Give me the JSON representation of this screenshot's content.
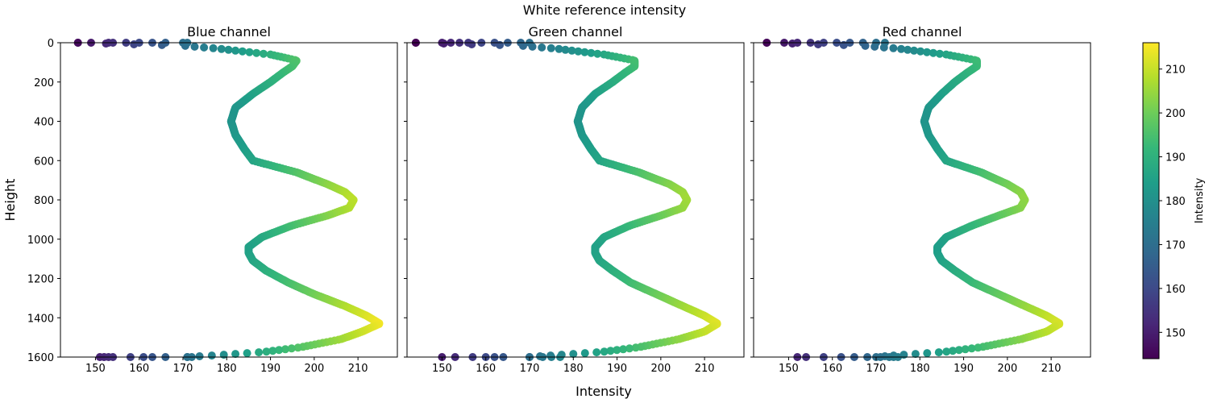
{
  "chart_data": {
    "type": "scatter",
    "title": "White reference intensity",
    "xlabel": "Intensity",
    "ylabel": "Height",
    "y_inverted": true,
    "ylim": [
      1600,
      0
    ],
    "yticks": [
      "0",
      "200",
      "400",
      "600",
      "800",
      "1000",
      "1200",
      "1400",
      "1600"
    ],
    "colormap": "viridis",
    "colorbar": {
      "label": "Intensity",
      "range": [
        144,
        216
      ],
      "ticks": [
        "150",
        "160",
        "170",
        "180",
        "190",
        "200",
        "210"
      ]
    },
    "panels": [
      {
        "title": "Blue channel",
        "xlim": [
          142,
          219
        ],
        "xticks": [
          "150",
          "160",
          "170",
          "180",
          "190",
          "200",
          "210"
        ],
        "profile": [
          [
            0,
            146
          ],
          [
            15,
            170
          ],
          [
            30,
            178
          ],
          [
            60,
            190
          ],
          [
            90,
            196
          ],
          [
            120,
            195
          ],
          [
            150,
            193
          ],
          [
            200,
            190
          ],
          [
            260,
            186
          ],
          [
            330,
            182
          ],
          [
            400,
            181
          ],
          [
            470,
            182
          ],
          [
            540,
            184
          ],
          [
            600,
            186
          ],
          [
            660,
            196
          ],
          [
            720,
            203
          ],
          [
            760,
            207
          ],
          [
            800,
            209
          ],
          [
            840,
            208
          ],
          [
            880,
            203
          ],
          [
            930,
            195
          ],
          [
            990,
            188
          ],
          [
            1040,
            185
          ],
          [
            1070,
            185
          ],
          [
            1110,
            186
          ],
          [
            1160,
            189
          ],
          [
            1220,
            194
          ],
          [
            1280,
            200
          ],
          [
            1340,
            207
          ],
          [
            1390,
            212
          ],
          [
            1430,
            215
          ],
          [
            1470,
            211
          ],
          [
            1510,
            206
          ],
          [
            1550,
            197
          ],
          [
            1575,
            188
          ],
          [
            1590,
            178
          ],
          [
            1600,
            171
          ]
        ],
        "edge_dots_top": [
          146,
          149,
          153,
          154,
          157,
          160,
          163,
          166,
          170,
          171
        ],
        "edge_dots_bottom": [
          151,
          152,
          153,
          154,
          158,
          161,
          163,
          166,
          171,
          172
        ]
      },
      {
        "title": "Green channel",
        "xlim": [
          142,
          219
        ],
        "xticks": [
          "150",
          "160",
          "170",
          "180",
          "190",
          "200",
          "210"
        ],
        "profile": [
          [
            0,
            144
          ],
          [
            15,
            168
          ],
          [
            30,
            176
          ],
          [
            60,
            187
          ],
          [
            90,
            194
          ],
          [
            120,
            194
          ],
          [
            150,
            192
          ],
          [
            200,
            189
          ],
          [
            260,
            185
          ],
          [
            330,
            182
          ],
          [
            400,
            181
          ],
          [
            470,
            182
          ],
          [
            540,
            184
          ],
          [
            600,
            186
          ],
          [
            660,
            195
          ],
          [
            720,
            202
          ],
          [
            760,
            205
          ],
          [
            800,
            206
          ],
          [
            840,
            205
          ],
          [
            880,
            200
          ],
          [
            930,
            193
          ],
          [
            990,
            187
          ],
          [
            1040,
            185
          ],
          [
            1070,
            185
          ],
          [
            1110,
            186
          ],
          [
            1160,
            189
          ],
          [
            1220,
            193
          ],
          [
            1280,
            199
          ],
          [
            1340,
            205
          ],
          [
            1390,
            210
          ],
          [
            1430,
            213
          ],
          [
            1470,
            210
          ],
          [
            1510,
            204
          ],
          [
            1550,
            195
          ],
          [
            1575,
            186
          ],
          [
            1590,
            176
          ],
          [
            1600,
            170
          ]
        ],
        "edge_dots_top": [
          144,
          150,
          152,
          154,
          156,
          159,
          162,
          165,
          168,
          170
        ],
        "edge_dots_bottom": [
          150,
          153,
          157,
          160,
          162,
          164,
          170,
          173,
          175,
          177
        ]
      },
      {
        "title": "Red channel",
        "xlim": [
          142,
          219
        ],
        "xticks": [
          "150",
          "160",
          "170",
          "180",
          "190",
          "200",
          "210"
        ],
        "profile": [
          [
            0,
            145
          ],
          [
            15,
            167
          ],
          [
            30,
            175
          ],
          [
            60,
            186
          ],
          [
            90,
            193
          ],
          [
            120,
            193
          ],
          [
            150,
            191
          ],
          [
            200,
            188
          ],
          [
            260,
            185
          ],
          [
            330,
            182
          ],
          [
            400,
            181
          ],
          [
            470,
            182
          ],
          [
            540,
            184
          ],
          [
            600,
            186
          ],
          [
            660,
            194
          ],
          [
            720,
            200
          ],
          [
            760,
            203
          ],
          [
            800,
            204
          ],
          [
            840,
            203
          ],
          [
            880,
            198
          ],
          [
            930,
            192
          ],
          [
            990,
            186
          ],
          [
            1040,
            184
          ],
          [
            1070,
            184
          ],
          [
            1110,
            185
          ],
          [
            1160,
            188
          ],
          [
            1220,
            192
          ],
          [
            1280,
            198
          ],
          [
            1340,
            204
          ],
          [
            1390,
            209
          ],
          [
            1430,
            212
          ],
          [
            1470,
            209
          ],
          [
            1510,
            203
          ],
          [
            1550,
            194
          ],
          [
            1575,
            185
          ],
          [
            1590,
            175
          ],
          [
            1600,
            170
          ]
        ],
        "edge_dots_top": [
          145,
          149,
          152,
          155,
          158,
          161,
          164,
          167,
          170,
          172
        ],
        "edge_dots_bottom": [
          152,
          154,
          158,
          162,
          165,
          168,
          171,
          173,
          174,
          175
        ]
      }
    ]
  }
}
